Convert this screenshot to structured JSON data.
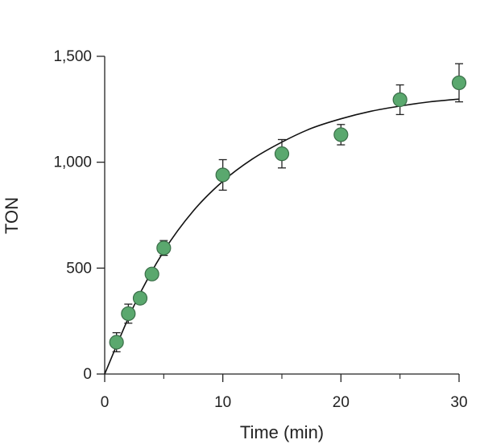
{
  "chart_data": {
    "type": "scatter",
    "title": "",
    "xlabel": "Time (min)",
    "ylabel": "TON",
    "xlim": [
      0,
      30
    ],
    "ylim": [
      0,
      1500
    ],
    "xticks": [
      0,
      10,
      20,
      30
    ],
    "xtick_labels": [
      "0",
      "10",
      "20",
      "30"
    ],
    "yticks": [
      0,
      500,
      1000,
      1500
    ],
    "ytick_labels": [
      "0",
      "500",
      "1,000",
      "1,500"
    ],
    "grid": false,
    "legend": "none",
    "series": [
      {
        "type": "scatter",
        "x": [
          1,
          2,
          3,
          4,
          5,
          10,
          15,
          20,
          25,
          30
        ],
        "y": [
          150,
          285,
          358,
          472,
          595,
          940,
          1040,
          1130,
          1295,
          1375
        ],
        "error": [
          45,
          45,
          20,
          20,
          35,
          72,
          67,
          48,
          70,
          90
        ],
        "color": "#5aa86e"
      },
      {
        "type": "line",
        "x": [
          0,
          2.5,
          5,
          7.5,
          10,
          12.5,
          15,
          17.5,
          20,
          22.5,
          25,
          27.5,
          30
        ],
        "y": [
          0,
          325,
          580,
          770,
          910,
          1015,
          1095,
          1160,
          1205,
          1240,
          1265,
          1285,
          1298
        ],
        "color": "#111111"
      }
    ]
  }
}
